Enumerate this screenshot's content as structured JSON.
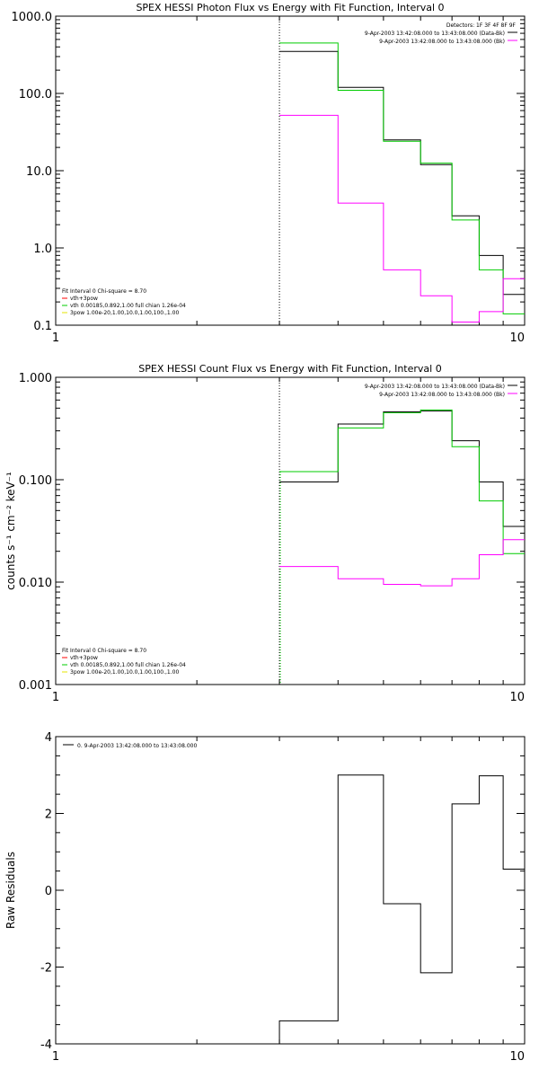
{
  "chart_data": [
    {
      "type": "line",
      "title": "SPEX HESSI Photon Flux vs Energy with Fit Function, Interval 0",
      "ylabel": "",
      "xscale": "log",
      "yscale": "log",
      "xlim": [
        1,
        10
      ],
      "ylim": [
        0.1,
        1000
      ],
      "x_ticks": [
        "1",
        "10"
      ],
      "y_ticks": [
        "0.1",
        "1.0",
        "10.0",
        "100.0",
        "1000.0"
      ],
      "y_tick_values": [
        0.1,
        1,
        10,
        100,
        1000
      ],
      "marker_x": 3,
      "legend_top": {
        "heading": "Detectors: 1F 3F 4F 8F 9F",
        "entries": [
          {
            "text": "9-Apr-2003 13:42:08.000 to 13:43:08.000 (Data-Bk)",
            "color": "#000000"
          },
          {
            "text": "9-Apr-2003 13:42:08.000 to 13:43:08.000 (Bk)",
            "color": "#ff00ff"
          }
        ]
      },
      "legend_bottom": {
        "heading": "Fit Interval 0   Chi-square = 8.70",
        "entries": [
          {
            "text": "vth+3pow",
            "color": "#ff0000"
          },
          {
            "text": "vth 0.00185,0.892,1.00   full chian 1.26e-04",
            "color": "#00cc00"
          },
          {
            "text": "3pow 1.00e-20,1.00,10.0,1.00,100.,1.00",
            "color": "#e6e600"
          }
        ]
      },
      "bin_edges": [
        3,
        4,
        5,
        6,
        7,
        8,
        9,
        10
      ],
      "series": [
        {
          "name": "Data-Bk",
          "color": "#000000",
          "values": [
            350,
            120,
            25,
            12,
            2.6,
            0.8,
            0.25
          ]
        },
        {
          "name": "vth+3pow",
          "color": "#00cc00",
          "values": [
            450,
            110,
            24,
            12.5,
            2.3,
            0.52,
            0.14
          ]
        },
        {
          "name": "Bk",
          "color": "#ff00ff",
          "values": [
            52,
            3.8,
            0.52,
            0.24,
            0.11,
            0.15,
            0.4
          ]
        }
      ]
    },
    {
      "type": "line",
      "title": "SPEX HESSI Count Flux vs Energy with Fit Function, Interval 0",
      "ylabel": "counts s⁻¹ cm⁻² keV⁻¹",
      "xscale": "log",
      "yscale": "log",
      "xlim": [
        1,
        10
      ],
      "ylim": [
        0.001,
        1
      ],
      "x_ticks": [
        "1",
        "10"
      ],
      "y_ticks": [
        "0.001",
        "0.010",
        "0.100",
        "1.000"
      ],
      "y_tick_values": [
        0.001,
        0.01,
        0.1,
        1
      ],
      "marker_x": 3,
      "legend_top": {
        "heading": "",
        "entries": [
          {
            "text": "9-Apr-2003 13:42:08.000 to 13:43:08.000 (Data-Bk)",
            "color": "#000000"
          },
          {
            "text": "9-Apr-2003 13:42:08.000 to 13:43:08.000 (Bk)",
            "color": "#ff00ff"
          }
        ]
      },
      "legend_bottom": {
        "heading": "Fit Interval 0   Chi-square = 8.70",
        "entries": [
          {
            "text": "vth+3pow",
            "color": "#ff0000"
          },
          {
            "text": "vth 0.00185,0.892,1.00   full chian 1.26e-04",
            "color": "#00cc00"
          },
          {
            "text": "3pow 1.00e-20,1.00,10.0,1.00,100.,1.00",
            "color": "#e6e600"
          }
        ]
      },
      "bin_edges": [
        3,
        4,
        5,
        6,
        7,
        8,
        9,
        10
      ],
      "series": [
        {
          "name": "Data-Bk",
          "color": "#000000",
          "values": [
            0.095,
            0.35,
            0.46,
            0.47,
            0.24,
            0.095,
            0.035
          ]
        },
        {
          "name": "vth+3pow",
          "color": "#00cc00",
          "values": [
            0.12,
            0.32,
            0.45,
            0.48,
            0.21,
            0.062,
            0.019
          ]
        },
        {
          "name": "Bk",
          "color": "#ff00ff",
          "values": [
            0.0142,
            0.0108,
            0.0095,
            0.0092,
            0.0108,
            0.0185,
            0.026
          ]
        }
      ]
    },
    {
      "type": "line",
      "title": "",
      "ylabel": "Raw Residuals",
      "xscale": "log",
      "yscale": "linear",
      "xlim": [
        1,
        10
      ],
      "ylim": [
        -4,
        4
      ],
      "x_ticks": [
        "1",
        "10"
      ],
      "y_ticks": [
        "-4",
        "-2",
        "0",
        "2",
        "4"
      ],
      "y_tick_values": [
        -4,
        -2,
        0,
        2,
        4
      ],
      "legend_top": {
        "heading": "",
        "entries": [
          {
            "text": "0. 9-Apr-2003 13:42:08.000 to 13:43:08.000",
            "color": "#000000"
          }
        ]
      },
      "bin_edges": [
        3,
        4,
        5,
        6,
        7,
        8,
        9,
        10
      ],
      "series": [
        {
          "name": "0. 9-Apr-2003 13:42:08.000 to 13:43:08.000",
          "color": "#000000",
          "values": [
            -3.4,
            3.0,
            -0.35,
            -2.15,
            2.25,
            2.98,
            0.55
          ]
        }
      ]
    }
  ]
}
